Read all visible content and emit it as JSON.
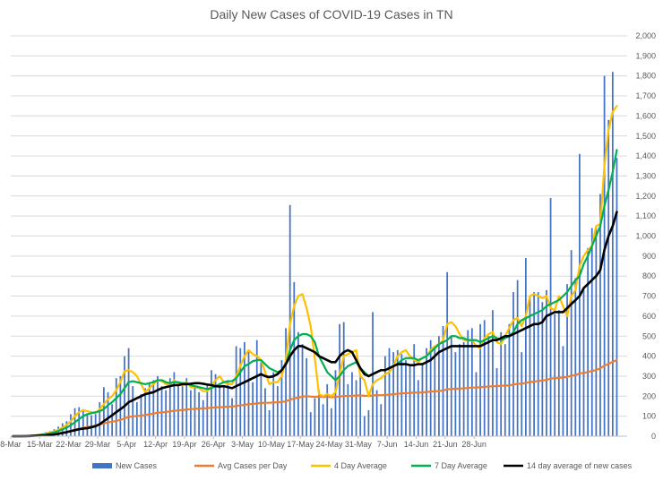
{
  "chart_data": {
    "type": "bar",
    "title": "Daily New Cases of COVID-19 Cases in TN",
    "xlabel": "",
    "ylabel": "",
    "ylim": [
      0,
      2000
    ],
    "y_ticks": [
      "0",
      "100",
      "200",
      "300",
      "400",
      "500",
      "600",
      "700",
      "800",
      "900",
      "1,000",
      "1,100",
      "1,200",
      "1,300",
      "1,400",
      "1,500",
      "1,600",
      "1,700",
      "1,800",
      "1,900",
      "2,000"
    ],
    "x_tick_labels": [
      "8-Mar",
      "15-Mar",
      "22-Mar",
      "29-Mar",
      "5-Apr",
      "12-Apr",
      "19-Apr",
      "26-Apr",
      "3-May",
      "10-May",
      "17-May",
      "24-May",
      "31-May",
      "7-Jun",
      "14-Jun",
      "21-Jun",
      "28-Jun"
    ],
    "grid": true,
    "legend_position": "bottom",
    "start_day_label": "8-Mar",
    "series": [
      {
        "name": "New Cases",
        "kind": "bar",
        "color": "#4472C4",
        "values": [
          0,
          0,
          1,
          2,
          4,
          7,
          11,
          14,
          20,
          25,
          35,
          48,
          65,
          75,
          110,
          140,
          145,
          135,
          110,
          105,
          120,
          170,
          245,
          220,
          160,
          290,
          300,
          400,
          440,
          250,
          170,
          210,
          240,
          270,
          280,
          300,
          250,
          230,
          290,
          320,
          260,
          250,
          290,
          230,
          250,
          220,
          180,
          260,
          330,
          310,
          260,
          250,
          280,
          190,
          450,
          440,
          470,
          430,
          270,
          480,
          370,
          240,
          130,
          320,
          250,
          380,
          540,
          1155,
          770,
          520,
          460,
          390,
          120,
          190,
          230,
          160,
          260,
          140,
          330,
          560,
          570,
          260,
          320,
          280,
          310,
          100,
          130,
          620,
          230,
          160,
          400,
          440,
          420,
          430,
          410,
          380,
          360,
          460,
          280,
          360,
          440,
          480,
          440,
          500,
          550,
          820,
          500,
          420,
          460,
          470,
          530,
          540,
          320,
          560,
          580,
          500,
          630,
          340,
          520,
          460,
          560,
          720,
          780,
          420,
          890,
          700,
          720,
          720,
          670,
          730,
          1190,
          610,
          630,
          450,
          760,
          930,
          790,
          1410,
          740,
          940,
          1040,
          1050,
          1210,
          1800,
          1580,
          1820,
          1390
        ]
      },
      {
        "name": "Avg Cases per Day",
        "kind": "line",
        "color": "#ED7D31",
        "values": [
          0,
          0,
          0,
          1,
          1,
          2,
          3,
          4,
          6,
          8,
          10,
          14,
          18,
          22,
          27,
          32,
          37,
          42,
          46,
          49,
          53,
          58,
          64,
          69,
          72,
          77,
          82,
          89,
          96,
          99,
          101,
          103,
          106,
          110,
          113,
          117,
          119,
          121,
          124,
          127,
          129,
          131,
          133,
          135,
          137,
          138,
          139,
          140,
          142,
          144,
          145,
          146,
          148,
          148,
          151,
          154,
          157,
          160,
          161,
          164,
          166,
          167,
          167,
          169,
          169,
          171,
          174,
          182,
          189,
          193,
          197,
          200,
          198,
          197,
          197,
          196,
          196,
          195,
          196,
          198,
          201,
          201,
          202,
          203,
          204,
          202,
          201,
          204,
          205,
          205,
          206,
          208,
          210,
          212,
          214,
          215,
          216,
          218,
          218,
          219,
          221,
          223,
          224,
          226,
          228,
          234,
          236,
          237,
          238,
          239,
          241,
          243,
          243,
          245,
          247,
          248,
          250,
          250,
          252,
          253,
          254,
          258,
          262,
          262,
          267,
          270,
          273,
          276,
          278,
          281,
          288,
          290,
          292,
          293,
          296,
          302,
          305,
          314,
          316,
          321,
          326,
          331,
          339,
          353,
          361,
          372,
          380
        ]
      },
      {
        "name": "4 Day Average",
        "kind": "line",
        "color": "#FFC000",
        "values": [
          0,
          0,
          1,
          1,
          2,
          4,
          6,
          9,
          13,
          18,
          24,
          32,
          43,
          56,
          75,
          100,
          120,
          130,
          125,
          120,
          115,
          135,
          160,
          185,
          200,
          230,
          270,
          325,
          330,
          320,
          300,
          260,
          220,
          240,
          260,
          280,
          275,
          260,
          255,
          280,
          260,
          255,
          270,
          245,
          245,
          240,
          225,
          225,
          250,
          280,
          300,
          270,
          260,
          260,
          300,
          350,
          400,
          430,
          410,
          400,
          380,
          320,
          260,
          270,
          270,
          300,
          380,
          560,
          650,
          700,
          710,
          640,
          550,
          390,
          210,
          200,
          210,
          200,
          220,
          310,
          400,
          410,
          420,
          430,
          300,
          280,
          200,
          260,
          280,
          290,
          310,
          320,
          350,
          400,
          420,
          430,
          400,
          380,
          370,
          390,
          400,
          430,
          450,
          460,
          480,
          560,
          570,
          550,
          510,
          480,
          480,
          480,
          450,
          440,
          490,
          510,
          520,
          470,
          460,
          500,
          540,
          580,
          590,
          550,
          600,
          700,
          710,
          700,
          690,
          700,
          640,
          630,
          700,
          650,
          600,
          700,
          730,
          850,
          900,
          930,
          950,
          1050,
          1060,
          1350,
          1530,
          1620,
          1650
        ]
      },
      {
        "name": "7 Day Average",
        "kind": "line",
        "color": "#00B050",
        "values": [
          0,
          0,
          0,
          1,
          2,
          3,
          5,
          7,
          10,
          14,
          19,
          26,
          34,
          43,
          55,
          70,
          85,
          100,
          110,
          115,
          120,
          125,
          135,
          155,
          170,
          190,
          210,
          240,
          270,
          275,
          270,
          265,
          260,
          265,
          270,
          280,
          280,
          270,
          265,
          270,
          270,
          265,
          265,
          255,
          250,
          245,
          240,
          235,
          240,
          250,
          260,
          270,
          275,
          275,
          290,
          320,
          350,
          360,
          375,
          380,
          380,
          360,
          340,
          330,
          320,
          330,
          360,
          430,
          480,
          500,
          510,
          510,
          500,
          470,
          400,
          360,
          320,
          300,
          280,
          300,
          330,
          350,
          360,
          370,
          340,
          320,
          300,
          310,
          320,
          330,
          330,
          340,
          350,
          360,
          380,
          390,
          390,
          390,
          380,
          390,
          400,
          420,
          440,
          460,
          470,
          480,
          500,
          500,
          490,
          490,
          480,
          480,
          480,
          470,
          480,
          490,
          500,
          490,
          480,
          490,
          500,
          520,
          560,
          580,
          590,
          600,
          610,
          620,
          630,
          650,
          660,
          670,
          680,
          700,
          720,
          750,
          780,
          800,
          860,
          900,
          950,
          1000,
          1050,
          1150,
          1230,
          1320,
          1430
        ]
      },
      {
        "name": "14 day average of new cases",
        "kind": "line",
        "color": "#000000",
        "values": [
          0,
          0,
          0,
          0,
          1,
          2,
          3,
          4,
          5,
          7,
          9,
          12,
          16,
          20,
          25,
          30,
          35,
          38,
          40,
          45,
          50,
          60,
          75,
          90,
          105,
          120,
          135,
          150,
          170,
          180,
          190,
          200,
          210,
          215,
          220,
          230,
          240,
          245,
          250,
          255,
          255,
          260,
          260,
          262,
          265,
          265,
          262,
          258,
          255,
          250,
          248,
          250,
          245,
          240,
          250,
          260,
          270,
          280,
          290,
          300,
          310,
          300,
          295,
          300,
          310,
          330,
          360,
          400,
          430,
          450,
          450,
          440,
          430,
          420,
          400,
          390,
          380,
          370,
          370,
          400,
          420,
          430,
          420,
          380,
          340,
          310,
          300,
          310,
          320,
          330,
          330,
          340,
          350,
          360,
          360,
          360,
          355,
          355,
          360,
          360,
          370,
          380,
          400,
          420,
          430,
          440,
          450,
          450,
          450,
          450,
          450,
          450,
          450,
          450,
          460,
          470,
          480,
          480,
          490,
          500,
          500,
          510,
          520,
          530,
          540,
          550,
          560,
          560,
          570,
          600,
          610,
          620,
          620,
          620,
          640,
          660,
          680,
          700,
          740,
          760,
          780,
          800,
          830,
          930,
          1000,
          1050,
          1120
        ]
      }
    ]
  }
}
